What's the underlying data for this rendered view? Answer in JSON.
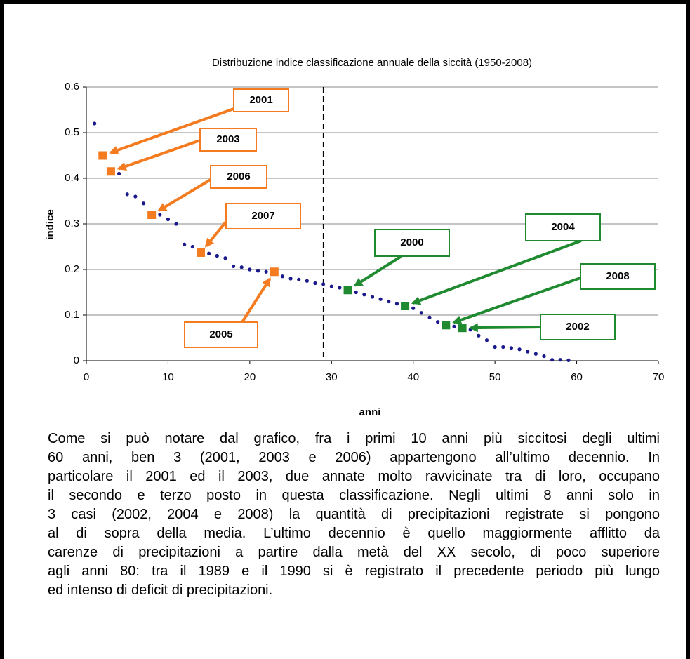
{
  "chart_data": {
    "type": "scatter",
    "title": "Distribuzione indice classificazione annuale della siccità (1950-2008)",
    "xlabel": "anni",
    "ylabel": "indice",
    "xlim": [
      0,
      70
    ],
    "xticks": [
      0,
      10,
      20,
      30,
      40,
      50,
      60,
      70
    ],
    "ylim": [
      0,
      0.6
    ],
    "yticks": [
      0,
      0.1,
      0.2,
      0.3,
      0.4,
      0.5,
      0.6
    ],
    "grid": true,
    "vline": 29,
    "series": [
      {
        "color": "#1a1a8c",
        "marker": "circle",
        "x": [
          1,
          4,
          5,
          6,
          7,
          9,
          10,
          11,
          12,
          13,
          15,
          16,
          17,
          18,
          19,
          20,
          21,
          22,
          24,
          25,
          26,
          27,
          28,
          29,
          30,
          31,
          33,
          34,
          35,
          36,
          37,
          38,
          40,
          41,
          42,
          43,
          45,
          47,
          48,
          49,
          50,
          51,
          52,
          53,
          54,
          55,
          56,
          57,
          58,
          59
        ],
        "values": [
          0.52,
          0.41,
          0.365,
          0.36,
          0.345,
          0.32,
          0.31,
          0.3,
          0.255,
          0.25,
          0.235,
          0.23,
          0.225,
          0.207,
          0.205,
          0.2,
          0.197,
          0.195,
          0.185,
          0.18,
          0.178,
          0.175,
          0.17,
          0.168,
          0.163,
          0.16,
          0.15,
          0.145,
          0.14,
          0.135,
          0.13,
          0.125,
          0.115,
          0.105,
          0.095,
          0.085,
          0.075,
          0.068,
          0.055,
          0.045,
          0.03,
          0.03,
          0.028,
          0.025,
          0.02,
          0.015,
          0.01,
          0.002,
          0.002,
          0.001
        ]
      },
      {
        "color": "#f47b20",
        "marker": "square",
        "x": [
          2,
          3,
          8,
          14,
          23
        ],
        "values": [
          0.45,
          0.415,
          0.32,
          0.237,
          0.195
        ],
        "labels": [
          "2001",
          "2003",
          "2006",
          "2007",
          "2005"
        ]
      },
      {
        "color": "#1f8a30",
        "marker": "square",
        "x": [
          32,
          39,
          44,
          46
        ],
        "values": [
          0.155,
          0.12,
          0.078,
          0.072
        ],
        "labels": [
          "2000",
          "2004",
          "2008",
          "2002"
        ]
      }
    ]
  },
  "paragraph": [
    "Come si può notare dal grafico, fra i primi 10 anni più siccitosi degli ultimi",
    "60 anni, ben 3 (2001, 2003 e 2006) appartengono all’ultimo decennio. In",
    "particolare il 2001 ed il 2003, due annate molto ravvicinate tra di loro, occupano",
    "il secondo e terzo posto in questa classificazione. Negli ultimi 8 anni solo in",
    "3 casi (2002, 2004 e 2008) la quantità di precipitazioni registrate si pongono",
    "al di sopra della media. L’ultimo decennio è quello maggiormente afflitto da",
    "carenze di precipitazioni a partire dalla metà del XX secolo, di poco superiore",
    "agli anni 80: tra il 1989 e il 1990 si è registrato il precedente periodo più lungo",
    "ed intenso di deficit di precipitazioni."
  ]
}
